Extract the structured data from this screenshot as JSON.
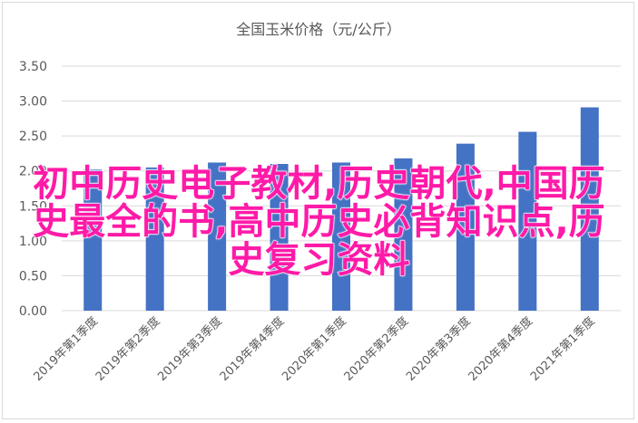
{
  "chart_data": {
    "type": "bar",
    "title": "全国玉米价格（元/公斤）",
    "categories": [
      "2019年第1季度",
      "2019年第2季度",
      "2019年第3季度",
      "2019年第4季度",
      "2020年第1季度",
      "2020年第2季度",
      "2020年第3季度",
      "2020年第4季度",
      "2021年第1季度"
    ],
    "values": [
      2.02,
      2.05,
      2.12,
      2.1,
      2.12,
      2.18,
      2.39,
      2.56,
      2.91
    ],
    "ylim": [
      0,
      3.5
    ],
    "yticks": [
      "0.00",
      "0.50",
      "1.00",
      "1.50",
      "2.00",
      "2.50",
      "3.00",
      "3.50"
    ],
    "grid": true,
    "bar_color": "#4472c4",
    "grid_color": "#d9d9d9",
    "label_color": "#595959"
  },
  "overlay": {
    "line1": "初中历史电子教材,历史朝代,中国历",
    "line2": "史最全的书,高中历史必背知识点,历",
    "line3": "史复习资料",
    "color": "#ff1aa8"
  }
}
